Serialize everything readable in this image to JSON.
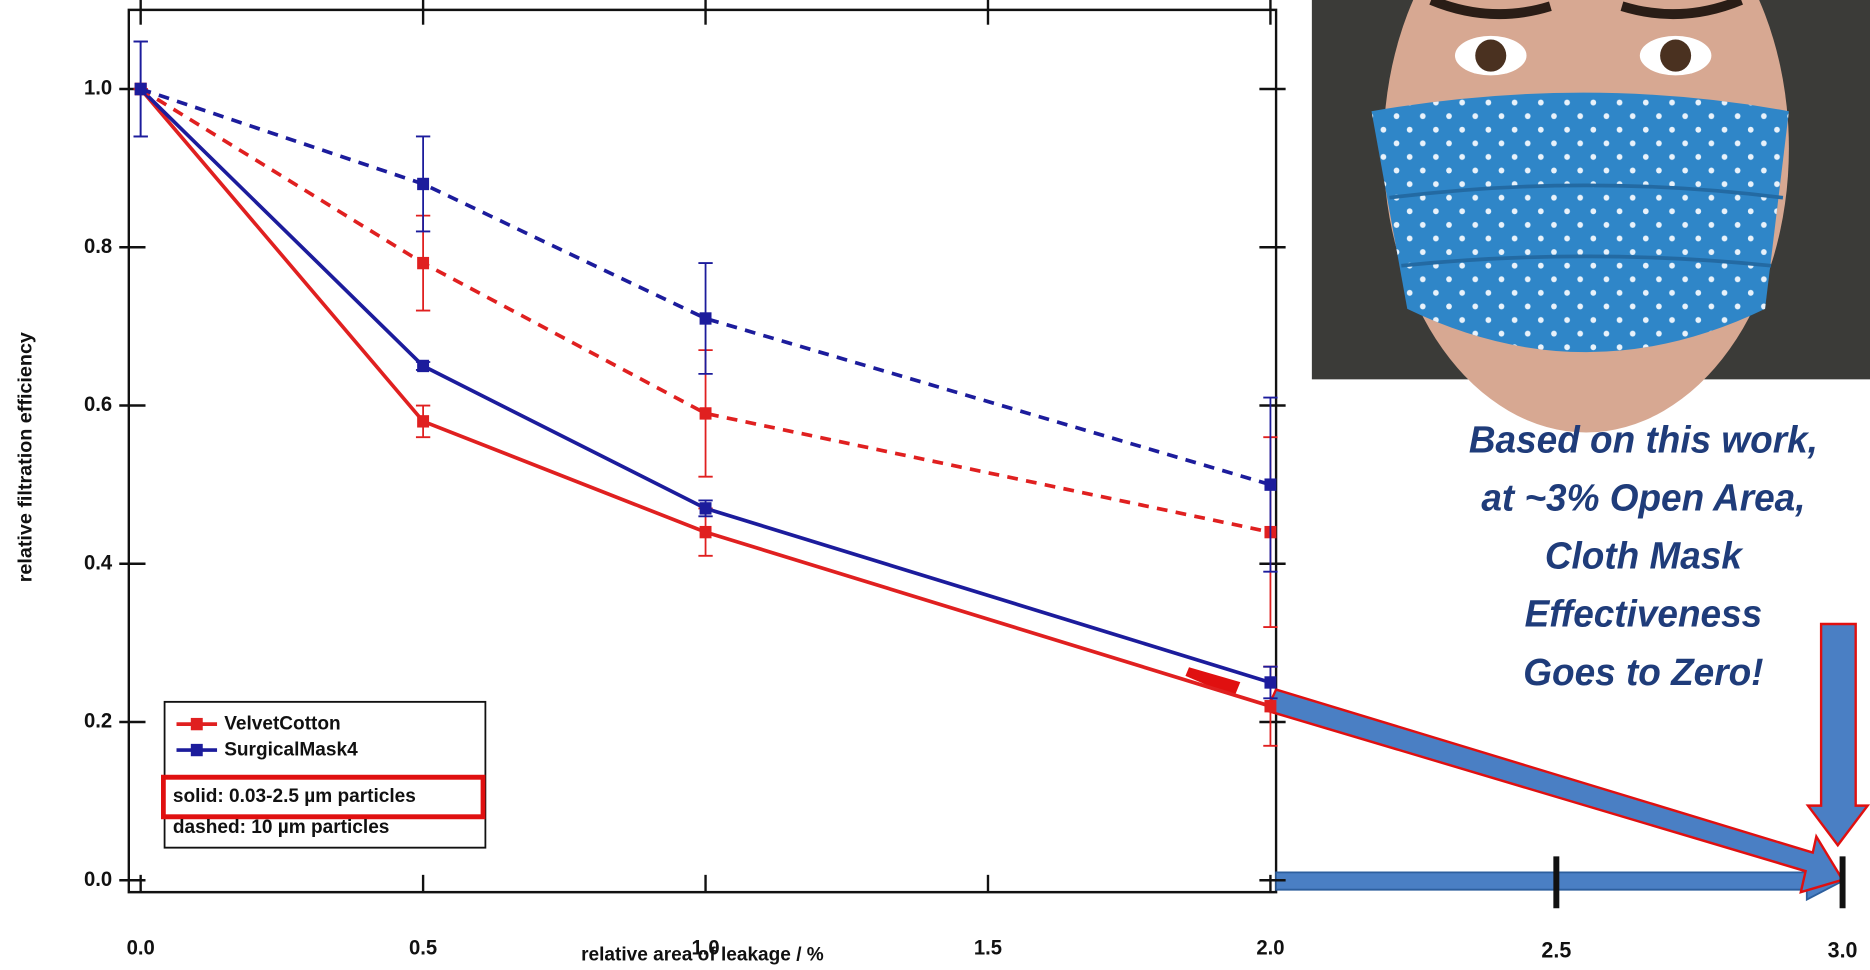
{
  "chart_data": {
    "type": "line",
    "x_label": "relative area of leakage / %",
    "y_label": "relative filtration efficiency",
    "x": [
      0,
      0.5,
      1.0,
      2.0
    ],
    "series": [
      {
        "name": "VelvetCotton",
        "color": "#e02020",
        "dashed": false,
        "values": [
          1.0,
          0.58,
          0.44,
          0.22
        ],
        "errors": [
          0.0,
          0.02,
          0.03,
          0.05
        ]
      },
      {
        "name": "SurgicalMask4",
        "color": "#1c1c9c",
        "dashed": false,
        "values": [
          1.0,
          0.65,
          0.47,
          0.25
        ],
        "errors": [
          0.06,
          0.005,
          0.01,
          0.02
        ]
      },
      {
        "color": "#e02020",
        "dashed": true,
        "values": [
          1.0,
          0.78,
          0.59,
          0.44
        ],
        "errors": [
          0.0,
          0.06,
          0.08,
          0.12
        ]
      },
      {
        "color": "#1c1c9c",
        "dashed": true,
        "values": [
          1.0,
          0.88,
          0.71,
          0.5
        ],
        "errors": [
          0.06,
          0.06,
          0.07,
          0.11
        ]
      }
    ],
    "legend_notes": [
      "solid: 0.03-2.5 µm particles",
      "dashed: 10 µm particles"
    ],
    "xlim": [
      -0.021,
      2.01
    ],
    "ylim": [
      -0.015,
      1.1
    ],
    "xticks": [
      {
        "value": 0,
        "label": "0.0"
      },
      {
        "value": 0.5,
        "label": "0.5"
      },
      {
        "value": 1,
        "label": "1.0"
      },
      {
        "value": 1.5,
        "label": "1.5"
      },
      {
        "value": 2,
        "label": "2.0"
      }
    ],
    "yticks": [
      {
        "value": 0,
        "label": "0.0"
      },
      {
        "value": 0.2,
        "label": "0.2"
      },
      {
        "value": 0.4,
        "label": "0.4"
      },
      {
        "value": 0.6,
        "label": "0.6"
      },
      {
        "value": 0.8,
        "label": "0.8"
      },
      {
        "value": 1,
        "label": "1.0"
      }
    ],
    "extension_ticks": [
      {
        "value": 2.5,
        "label": "2.5"
      },
      {
        "value": 3,
        "label": "3.0"
      }
    ],
    "annotation": [
      "Based on this work,",
      "at ~3% Open Area,",
      "Cloth Mask",
      "Effectiveness",
      "Goes to Zero!"
    ]
  }
}
